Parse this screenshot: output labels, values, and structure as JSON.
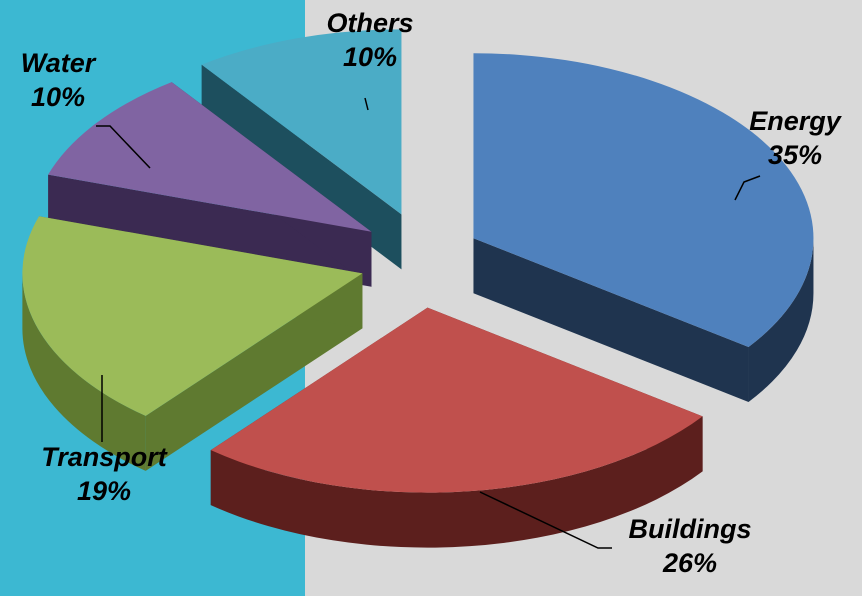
{
  "chart_data": {
    "type": "pie",
    "style": "3d-exploded",
    "slices": [
      {
        "label": "Energy",
        "pct_label": "35%",
        "value": 35,
        "color": "#4f81bd",
        "side_color": "#1f344f"
      },
      {
        "label": "Buildings",
        "pct_label": "26%",
        "value": 26,
        "color": "#c0504d",
        "side_color": "#5c1f1d"
      },
      {
        "label": "Transport",
        "pct_label": "19%",
        "value": 19,
        "color": "#9bbb59",
        "side_color": "#5f7a30"
      },
      {
        "label": "Water",
        "pct_label": "10%",
        "value": 10,
        "color": "#8064a2",
        "side_color": "#3b2a52"
      },
      {
        "label": "Others",
        "pct_label": "10%",
        "value": 10,
        "color": "#4bacc6",
        "side_color": "#1d4f5e"
      }
    ],
    "background": {
      "left_color": "#3cb8d2",
      "right_color": "#d9d9d9"
    }
  }
}
